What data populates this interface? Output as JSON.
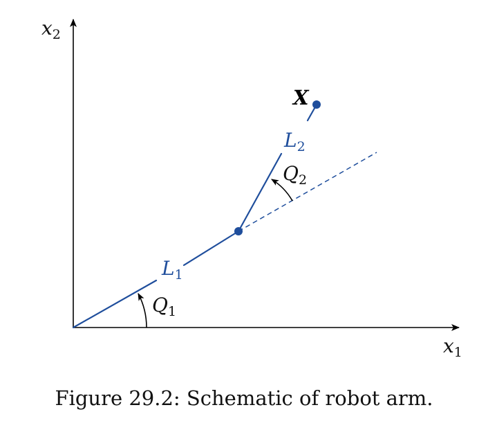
{
  "axes": {
    "x_label": "x",
    "x_label_sub": "1",
    "y_label": "x",
    "y_label_sub": "2"
  },
  "arm": {
    "link1_label": "L",
    "link1_sub": "1",
    "link2_label": "L",
    "link2_sub": "2",
    "angle1_label": "Q",
    "angle1_sub": "1",
    "angle2_label": "Q",
    "angle2_sub": "2",
    "end_effector_label": "X"
  },
  "colors": {
    "arm": "#1f4e9c",
    "axis": "#000000",
    "text": "#111111"
  },
  "caption": "Figure 29.2: Schematic of robot arm."
}
